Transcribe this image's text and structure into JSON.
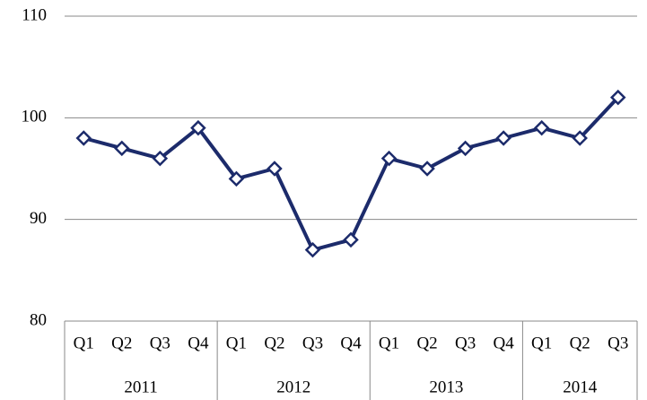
{
  "chart_data": {
    "type": "line",
    "category_groups": [
      {
        "name": "2011",
        "categories": [
          "Q1",
          "Q2",
          "Q3",
          "Q4"
        ]
      },
      {
        "name": "2012",
        "categories": [
          "Q1",
          "Q2",
          "Q3",
          "Q4"
        ]
      },
      {
        "name": "2013",
        "categories": [
          "Q1",
          "Q2",
          "Q3",
          "Q4"
        ]
      },
      {
        "name": "2014",
        "categories": [
          "Q1",
          "Q2",
          "Q3"
        ]
      }
    ],
    "series": [
      {
        "color": "#1c2b6b",
        "values": [
          98,
          97,
          96,
          99,
          94,
          95,
          87,
          88,
          96,
          95,
          97,
          98,
          99,
          98,
          102
        ]
      }
    ],
    "ylim": [
      80,
      110
    ],
    "yticks": [
      80,
      90,
      100,
      110
    ],
    "grid": true
  }
}
